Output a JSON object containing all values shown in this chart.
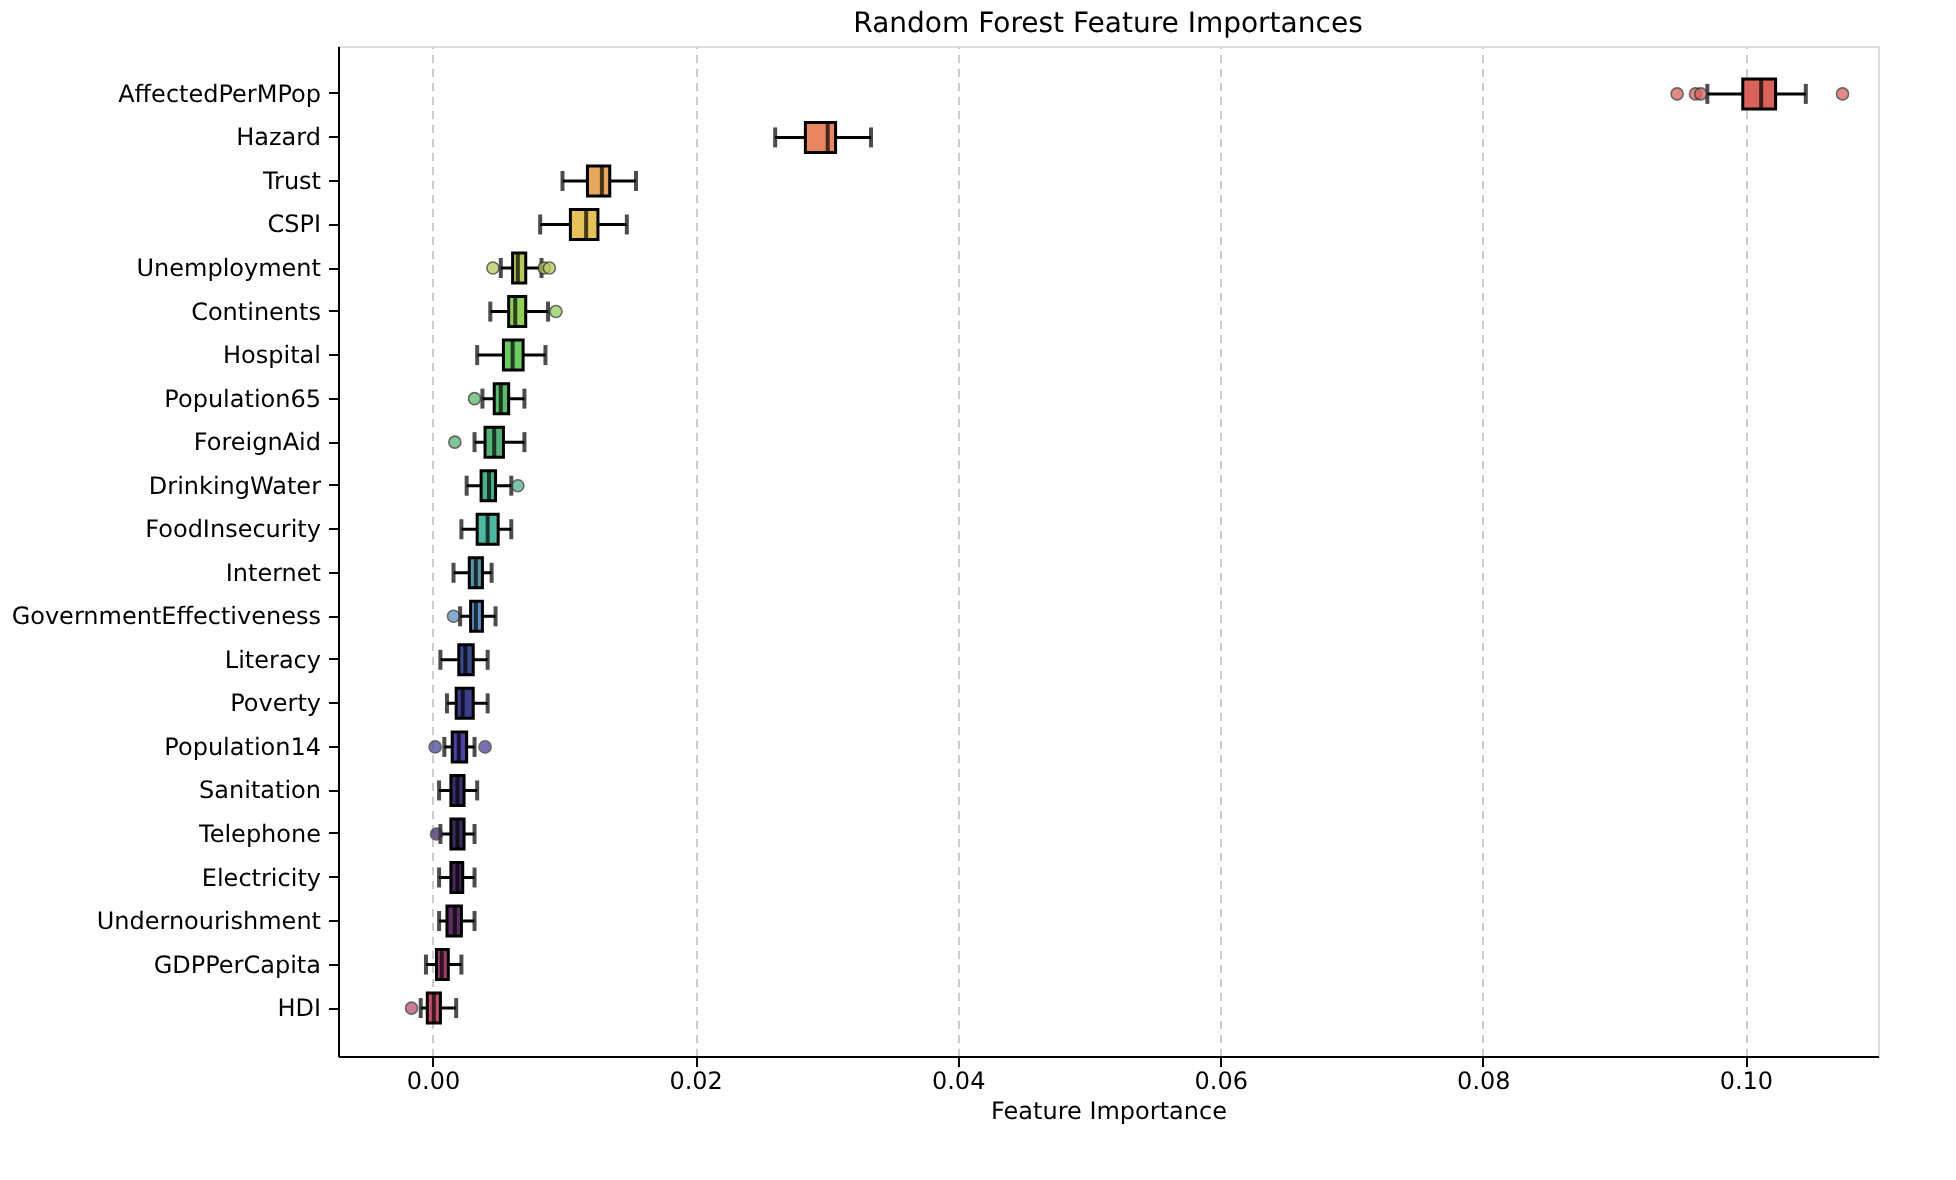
{
  "chart_data": {
    "type": "box",
    "title": "Random Forest Feature Importances",
    "xlabel": "Feature Importance",
    "categories": [
      "AffectedPerMPop",
      "Hazard",
      "Trust",
      "CSPI",
      "Unemployment",
      "Continents",
      "Hospital",
      "Population65",
      "ForeignAid",
      "DrinkingWater",
      "FoodInsecurity",
      "Internet",
      "GovernmentEffectiveness",
      "Literacy",
      "Poverty",
      "Population14",
      "Sanitation",
      "Telephone",
      "Electricity",
      "Undernourishment",
      "GDPPerCapita",
      "HDI"
    ],
    "colors": [
      "#d9625a",
      "#e8865f",
      "#e8a860",
      "#e6c15a",
      "#b7c95a",
      "#8fcf5a",
      "#6ccb62",
      "#5cb86a",
      "#55b274",
      "#4fae8a",
      "#4eb9a0",
      "#5a95a8",
      "#5f8fc0",
      "#3a4a8a",
      "#3a3f8a",
      "#4a44a0",
      "#3a2f6a",
      "#3d2a5e",
      "#4a2a5a",
      "#5a2d60",
      "#9a3f6a",
      "#c0506a"
    ],
    "boxes": [
      {
        "low": 0.0971,
        "q1": 0.0998,
        "median": 0.1012,
        "q3": 0.1023,
        "high": 0.1046,
        "outliers": [
          0.0948,
          0.0962,
          0.0966,
          0.1074
        ]
      },
      {
        "low": 0.0261,
        "q1": 0.0284,
        "median": 0.0301,
        "q3": 0.0307,
        "high": 0.0334
      },
      {
        "low": 0.0099,
        "q1": 0.0118,
        "median": 0.0129,
        "q3": 0.0135,
        "high": 0.0155
      },
      {
        "low": 0.0082,
        "q1": 0.0105,
        "median": 0.0117,
        "q3": 0.0126,
        "high": 0.0148
      },
      {
        "low": 0.0052,
        "q1": 0.0061,
        "median": 0.0065,
        "q3": 0.0071,
        "high": 0.0083,
        "outliers": [
          0.0046,
          0.0085,
          0.0089
        ]
      },
      {
        "low": 0.0044,
        "q1": 0.0058,
        "median": 0.0063,
        "q3": 0.0071,
        "high": 0.0088,
        "outliers": [
          0.0094
        ]
      },
      {
        "low": 0.0034,
        "q1": 0.0054,
        "median": 0.0061,
        "q3": 0.0069,
        "high": 0.0086
      },
      {
        "low": 0.0038,
        "q1": 0.0047,
        "median": 0.0052,
        "q3": 0.0058,
        "high": 0.007,
        "outliers": [
          0.0032
        ]
      },
      {
        "low": 0.0032,
        "q1": 0.004,
        "median": 0.0047,
        "q3": 0.0054,
        "high": 0.007,
        "outliers": [
          0.0017
        ]
      },
      {
        "low": 0.0026,
        "q1": 0.0037,
        "median": 0.0043,
        "q3": 0.0048,
        "high": 0.006,
        "outliers": [
          0.0065
        ]
      },
      {
        "low": 0.0022,
        "q1": 0.0034,
        "median": 0.0042,
        "q3": 0.005,
        "high": 0.006
      },
      {
        "low": 0.0016,
        "q1": 0.0028,
        "median": 0.0033,
        "q3": 0.0038,
        "high": 0.0045
      },
      {
        "low": 0.0021,
        "q1": 0.0029,
        "median": 0.0033,
        "q3": 0.0038,
        "high": 0.0048,
        "outliers": [
          0.0016
        ]
      },
      {
        "low": 0.0006,
        "q1": 0.002,
        "median": 0.0025,
        "q3": 0.0031,
        "high": 0.0042
      },
      {
        "low": 0.0011,
        "q1": 0.0018,
        "median": 0.0023,
        "q3": 0.0031,
        "high": 0.0042
      },
      {
        "low": 0.0009,
        "q1": 0.0015,
        "median": 0.002,
        "q3": 0.0026,
        "high": 0.0032,
        "outliers": [
          0.0002,
          0.004
        ]
      },
      {
        "low": 0.0005,
        "q1": 0.0014,
        "median": 0.0019,
        "q3": 0.0024,
        "high": 0.0034
      },
      {
        "low": 0.0006,
        "q1": 0.0014,
        "median": 0.0019,
        "q3": 0.0024,
        "high": 0.0032,
        "outliers": [
          0.0003
        ]
      },
      {
        "low": 0.0005,
        "q1": 0.0014,
        "median": 0.0019,
        "q3": 0.0023,
        "high": 0.0032
      },
      {
        "low": 0.0005,
        "q1": 0.0011,
        "median": 0.0017,
        "q3": 0.0022,
        "high": 0.0032
      },
      {
        "low": -0.0005,
        "q1": 0.0003,
        "median": 0.0007,
        "q3": 0.0012,
        "high": 0.0022
      },
      {
        "low": -0.0009,
        "q1": -0.0004,
        "median": 0.0001,
        "q3": 0.0006,
        "high": 0.0018,
        "outliers": [
          -0.0016
        ]
      }
    ],
    "xlim": [
      -0.0072,
      0.1101
    ],
    "xticks": [
      {
        "value": 0,
        "label": "0.00"
      },
      {
        "value": 0.02,
        "label": "0.02"
      },
      {
        "value": 0.04,
        "label": "0.04"
      },
      {
        "value": 0.06,
        "label": "0.06"
      },
      {
        "value": 0.08,
        "label": "0.08"
      },
      {
        "value": 0.1,
        "label": "0.10"
      }
    ],
    "grid": "x",
    "marker": "circle",
    "orientation": "horizontal"
  }
}
